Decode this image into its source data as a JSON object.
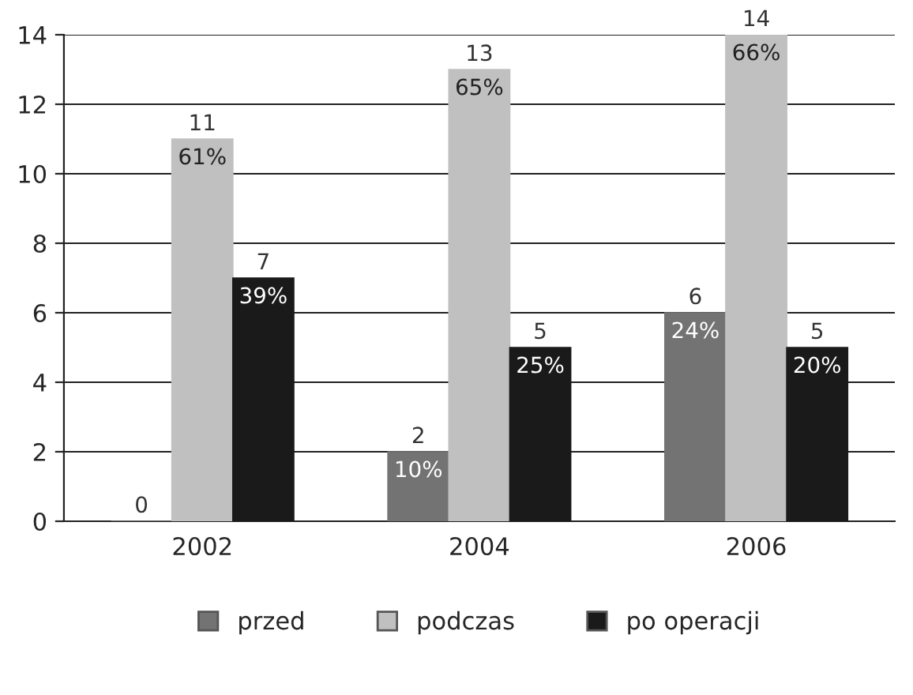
{
  "chart_data": {
    "type": "bar",
    "categories": [
      "2002",
      "2004",
      "2006"
    ],
    "series": [
      {
        "name": "przed",
        "color": "#737373",
        "values": [
          0,
          2,
          6
        ],
        "value_labels": [
          "0",
          "2\n10%",
          "6\n24%"
        ]
      },
      {
        "name": "podczas",
        "color": "#c0c0c0",
        "values": [
          11,
          13,
          14
        ],
        "value_labels": [
          "11\n61%",
          "13\n65%",
          "14\n66%"
        ]
      },
      {
        "name": "po operacji",
        "color": "#1a1a1a",
        "values": [
          7,
          5,
          5
        ],
        "value_labels": [
          "7\n39%",
          "5\n25%",
          "5\n20%"
        ]
      }
    ],
    "ylim": [
      0,
      14
    ],
    "yticks": [
      0,
      2,
      4,
      6,
      8,
      10,
      12,
      14
    ],
    "grid": "y",
    "legend": "bottom"
  }
}
